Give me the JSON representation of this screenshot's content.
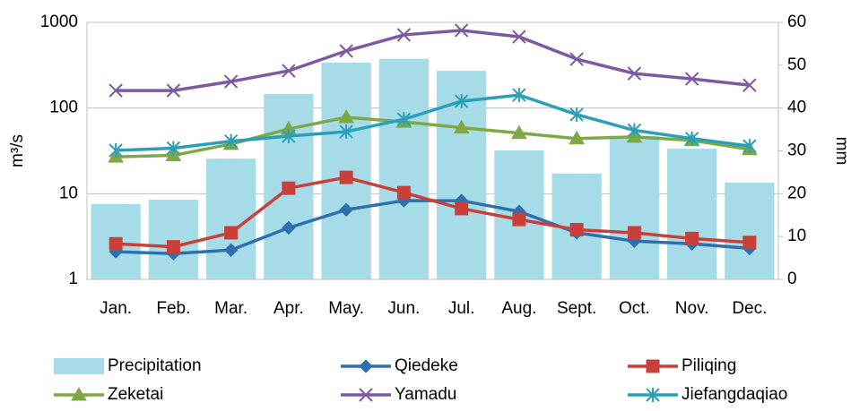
{
  "chart_data": {
    "type": "combo",
    "y_label": "m³/s",
    "y2_label": "mm",
    "categories": [
      "Jan.",
      "Feb.",
      "Mar.",
      "Apr.",
      "May.",
      "Jun.",
      "Jul.",
      "Aug.",
      "Sept.",
      "Oct.",
      "Nov.",
      "Dec."
    ],
    "ylim": [
      1,
      1000
    ],
    "yticks": [
      1,
      10,
      100,
      1000
    ],
    "log_scale": true,
    "grid": true,
    "y2lim": [
      0,
      60
    ],
    "y2ticks": [
      0,
      10,
      20,
      30,
      40,
      50,
      60
    ],
    "legend": "bottom",
    "series": [
      {
        "name": "Precipitation",
        "type": "bar",
        "axis": "y2",
        "color": "#a6dce8",
        "values": [
          17.6,
          18.6,
          28.2,
          43.3,
          50.6,
          51.5,
          48.7,
          30.1,
          24.7,
          33.5,
          30.5,
          22.6
        ]
      },
      {
        "name": "Qiedeke",
        "type": "line",
        "marker": "diamond",
        "color": "#2e6fae",
        "values": [
          2.1,
          2.0,
          2.2,
          4.0,
          6.5,
          8.3,
          8.3,
          6.2,
          3.5,
          2.8,
          2.6,
          2.3
        ]
      },
      {
        "name": "Piliqing",
        "type": "line",
        "marker": "square",
        "color": "#c9403a",
        "values": [
          2.6,
          2.4,
          3.5,
          11.6,
          15.5,
          10.3,
          6.7,
          5.0,
          3.8,
          3.5,
          3.0,
          2.7
        ]
      },
      {
        "name": "Zeketai",
        "type": "line",
        "marker": "triangle",
        "color": "#7ea846",
        "values": [
          27,
          28,
          38,
          57,
          78,
          69,
          59,
          51,
          44,
          46,
          42,
          33
        ]
      },
      {
        "name": "Yamadu",
        "type": "line",
        "marker": "x",
        "color": "#7d5aa0",
        "values": [
          160,
          160,
          204,
          272,
          464,
          715,
          806,
          680,
          372,
          253,
          219,
          185
        ]
      },
      {
        "name": "Jiefangdaqiao",
        "type": "line",
        "marker": "star",
        "color": "#2aa0b8",
        "values": [
          32,
          34,
          41,
          47,
          53,
          74,
          120,
          142,
          84,
          55,
          44,
          36
        ]
      }
    ]
  }
}
